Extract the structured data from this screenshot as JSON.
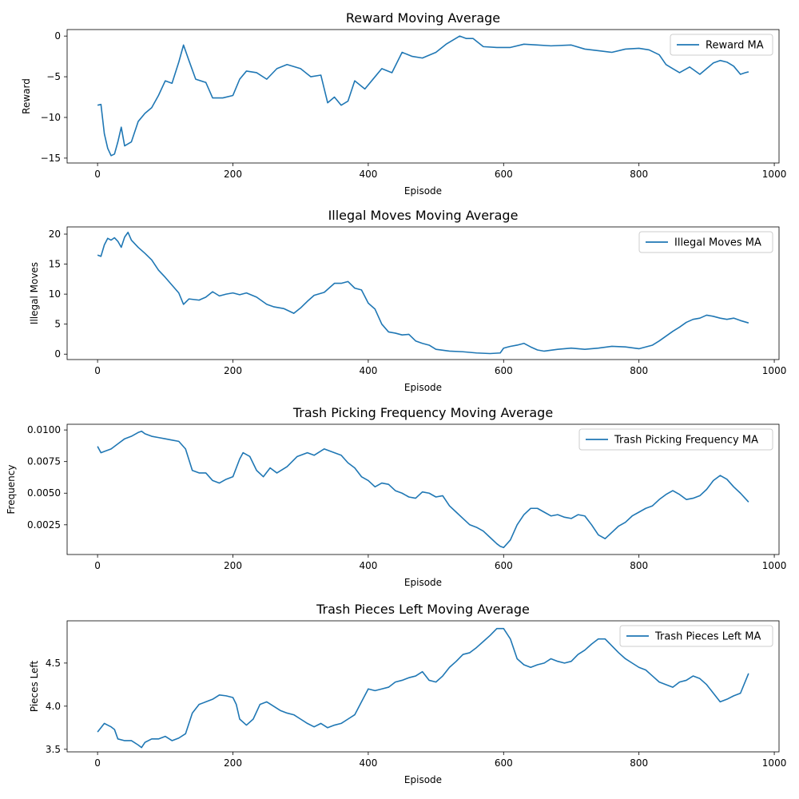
{
  "figure": {
    "line_color": "#1f77b4"
  },
  "chart_data": [
    {
      "type": "line",
      "title": "Reward Moving Average",
      "xlabel": "Episode",
      "ylabel": "Reward",
      "legend": {
        "label": "Reward MA",
        "position": "top-right"
      },
      "grid": false,
      "xlim": [
        -45,
        1007
      ],
      "ylim": [
        -15.6,
        0.8
      ],
      "xticks": [
        0,
        200,
        400,
        600,
        800,
        1000
      ],
      "xtick_labels": [
        "0",
        "200",
        "400",
        "600",
        "800",
        "1000"
      ],
      "yticks": [
        0,
        -5,
        -10,
        -15
      ],
      "ytick_labels": [
        "0",
        "−5",
        "−10",
        "−15"
      ],
      "series": [
        {
          "name": "Reward MA",
          "x": [
            0,
            5,
            10,
            15,
            20,
            25,
            30,
            35,
            40,
            50,
            60,
            70,
            80,
            90,
            100,
            110,
            120,
            127,
            135,
            145,
            160,
            170,
            185,
            200,
            210,
            220,
            235,
            250,
            265,
            280,
            300,
            315,
            330,
            340,
            350,
            360,
            370,
            380,
            395,
            410,
            420,
            435,
            450,
            465,
            480,
            500,
            515,
            535,
            545,
            555,
            570,
            590,
            610,
            630,
            650,
            670,
            700,
            720,
            740,
            760,
            780,
            800,
            815,
            830,
            840,
            850,
            860,
            875,
            890,
            900,
            910,
            920,
            930,
            940,
            950,
            957,
            962
          ],
          "y": [
            -8.5,
            -8.4,
            -12.0,
            -13.8,
            -14.7,
            -14.5,
            -13.0,
            -11.2,
            -13.5,
            -13.0,
            -10.5,
            -9.5,
            -8.8,
            -7.3,
            -5.5,
            -5.8,
            -3.2,
            -1.1,
            -3.0,
            -5.3,
            -5.7,
            -7.6,
            -7.6,
            -7.3,
            -5.3,
            -4.3,
            -4.5,
            -5.3,
            -4.0,
            -3.5,
            -4.0,
            -5.0,
            -4.8,
            -8.2,
            -7.5,
            -8.5,
            -8.0,
            -5.5,
            -6.5,
            -5.0,
            -4.0,
            -4.5,
            -2.0,
            -2.5,
            -2.7,
            -2.0,
            -1.0,
            0.0,
            -0.3,
            -0.3,
            -1.3,
            -1.4,
            -1.4,
            -1.0,
            -1.1,
            -1.2,
            -1.1,
            -1.6,
            -1.8,
            -2.0,
            -1.6,
            -1.5,
            -1.7,
            -2.3,
            -3.5,
            -4.0,
            -4.5,
            -3.8,
            -4.7,
            -4.0,
            -3.3,
            -3.0,
            -3.2,
            -3.7,
            -4.7,
            -4.5,
            -4.4
          ]
        }
      ]
    },
    {
      "type": "line",
      "title": "Illegal Moves Moving Average",
      "xlabel": "Episode",
      "ylabel": "Illegal Moves",
      "legend": {
        "label": "Illegal Moves MA",
        "position": "top-right"
      },
      "grid": false,
      "xlim": [
        -45,
        1007
      ],
      "ylim": [
        -0.9,
        21.2
      ],
      "xticks": [
        0,
        200,
        400,
        600,
        800,
        1000
      ],
      "xtick_labels": [
        "0",
        "200",
        "400",
        "600",
        "800",
        "1000"
      ],
      "yticks": [
        0,
        5,
        10,
        15,
        20
      ],
      "ytick_labels": [
        "0",
        "5",
        "10",
        "15",
        "20"
      ],
      "series": [
        {
          "name": "Illegal Moves MA",
          "x": [
            0,
            5,
            10,
            15,
            20,
            25,
            30,
            35,
            40,
            45,
            50,
            60,
            70,
            80,
            90,
            100,
            110,
            120,
            127,
            135,
            150,
            160,
            170,
            180,
            190,
            200,
            210,
            220,
            235,
            250,
            260,
            275,
            290,
            300,
            310,
            320,
            335,
            350,
            360,
            370,
            380,
            390,
            400,
            410,
            420,
            430,
            440,
            450,
            460,
            470,
            480,
            490,
            500,
            520,
            540,
            560,
            580,
            595,
            600,
            610,
            620,
            630,
            640,
            650,
            660,
            680,
            700,
            720,
            740,
            760,
            780,
            800,
            820,
            830,
            840,
            850,
            860,
            870,
            880,
            890,
            900,
            910,
            920,
            930,
            940,
            950,
            962
          ],
          "y": [
            16.5,
            16.3,
            18.2,
            19.3,
            19.0,
            19.4,
            18.8,
            17.8,
            19.5,
            20.3,
            19.0,
            17.8,
            16.8,
            15.7,
            14.0,
            12.8,
            11.5,
            10.2,
            8.3,
            9.2,
            9.0,
            9.5,
            10.4,
            9.7,
            10.0,
            10.2,
            9.9,
            10.2,
            9.5,
            8.3,
            7.9,
            7.6,
            6.8,
            7.7,
            8.8,
            9.8,
            10.3,
            11.8,
            11.8,
            12.1,
            11.0,
            10.7,
            8.5,
            7.5,
            5.0,
            3.7,
            3.5,
            3.2,
            3.3,
            2.2,
            1.8,
            1.5,
            0.8,
            0.5,
            0.4,
            0.2,
            0.1,
            0.2,
            1.0,
            1.3,
            1.5,
            1.8,
            1.2,
            0.7,
            0.5,
            0.8,
            1.0,
            0.8,
            1.0,
            1.3,
            1.2,
            0.9,
            1.5,
            2.2,
            3.0,
            3.8,
            4.5,
            5.3,
            5.8,
            6.0,
            6.5,
            6.3,
            6.0,
            5.8,
            6.0,
            5.6,
            5.2
          ]
        }
      ]
    },
    {
      "type": "line",
      "title": "Trash Picking Frequency Moving Average",
      "xlabel": "Episode",
      "ylabel": "Frequency",
      "legend": {
        "label": "Trash Picking Frequency MA",
        "position": "top-right"
      },
      "grid": false,
      "xlim": [
        -45,
        1007
      ],
      "ylim": [
        0.00015,
        0.01045
      ],
      "xticks": [
        0,
        200,
        400,
        600,
        800,
        1000
      ],
      "xtick_labels": [
        "0",
        "200",
        "400",
        "600",
        "800",
        "1000"
      ],
      "yticks": [
        0.0025,
        0.005,
        0.0075,
        0.01
      ],
      "ytick_labels": [
        "0.0025",
        "0.0050",
        "0.0075",
        "0.0100"
      ],
      "series": [
        {
          "name": "Trash Picking Frequency MA",
          "x": [
            0,
            5,
            10,
            20,
            30,
            40,
            50,
            60,
            65,
            70,
            80,
            90,
            100,
            110,
            120,
            130,
            140,
            150,
            160,
            170,
            180,
            190,
            200,
            210,
            215,
            225,
            235,
            245,
            255,
            265,
            280,
            295,
            310,
            320,
            335,
            350,
            360,
            370,
            380,
            390,
            400,
            410,
            420,
            430,
            440,
            450,
            460,
            470,
            480,
            490,
            500,
            510,
            520,
            530,
            540,
            550,
            560,
            570,
            580,
            590,
            595,
            600,
            610,
            620,
            630,
            640,
            650,
            660,
            670,
            680,
            690,
            700,
            710,
            720,
            730,
            740,
            750,
            760,
            770,
            780,
            790,
            800,
            810,
            820,
            830,
            840,
            850,
            860,
            870,
            880,
            890,
            900,
            910,
            920,
            930,
            940,
            950,
            962
          ],
          "y": [
            0.0087,
            0.0082,
            0.0083,
            0.0085,
            0.0089,
            0.0093,
            0.0095,
            0.0098,
            0.0099,
            0.0097,
            0.0095,
            0.0094,
            0.0093,
            0.0092,
            0.0091,
            0.0085,
            0.0068,
            0.0066,
            0.0066,
            0.006,
            0.0058,
            0.0061,
            0.0063,
            0.0077,
            0.0082,
            0.0079,
            0.0068,
            0.0063,
            0.007,
            0.0066,
            0.0071,
            0.0079,
            0.0082,
            0.008,
            0.0085,
            0.0082,
            0.008,
            0.0074,
            0.007,
            0.0063,
            0.006,
            0.0055,
            0.0058,
            0.0057,
            0.0052,
            0.005,
            0.0047,
            0.0046,
            0.0051,
            0.005,
            0.0047,
            0.0048,
            0.004,
            0.0035,
            0.003,
            0.0025,
            0.0023,
            0.002,
            0.0015,
            0.001,
            0.0008,
            0.0007,
            0.0013,
            0.0025,
            0.0033,
            0.0038,
            0.0038,
            0.0035,
            0.0032,
            0.0033,
            0.0031,
            0.003,
            0.0033,
            0.0032,
            0.0025,
            0.0017,
            0.0014,
            0.0019,
            0.0024,
            0.0027,
            0.0032,
            0.0035,
            0.0038,
            0.004,
            0.0045,
            0.0049,
            0.0052,
            0.0049,
            0.0045,
            0.0046,
            0.0048,
            0.0053,
            0.006,
            0.0064,
            0.0061,
            0.0055,
            0.005,
            0.0043
          ]
        }
      ]
    },
    {
      "type": "line",
      "title": "Trash Pieces Left Moving Average",
      "xlabel": "Episode",
      "ylabel": "Pieces Left",
      "legend": {
        "label": "Trash Pieces Left MA",
        "position": "top-right"
      },
      "grid": false,
      "xlim": [
        -45,
        1007
      ],
      "ylim": [
        3.47,
        4.99
      ],
      "xticks": [
        0,
        200,
        400,
        600,
        800,
        1000
      ],
      "xtick_labels": [
        "0",
        "200",
        "400",
        "600",
        "800",
        "1000"
      ],
      "yticks": [
        3.5,
        4.0,
        4.5
      ],
      "ytick_labels": [
        "3.5",
        "4.0",
        "4.5"
      ],
      "series": [
        {
          "name": "Trash Pieces Left MA",
          "x": [
            0,
            5,
            10,
            15,
            20,
            25,
            30,
            40,
            50,
            60,
            65,
            70,
            80,
            90,
            100,
            110,
            120,
            130,
            140,
            150,
            160,
            170,
            180,
            190,
            200,
            205,
            210,
            220,
            230,
            240,
            250,
            260,
            270,
            280,
            290,
            300,
            310,
            320,
            330,
            340,
            350,
            360,
            370,
            380,
            390,
            400,
            410,
            420,
            430,
            440,
            450,
            460,
            470,
            480,
            490,
            500,
            510,
            520,
            530,
            540,
            550,
            560,
            570,
            580,
            590,
            600,
            610,
            620,
            630,
            640,
            650,
            660,
            670,
            680,
            690,
            700,
            710,
            720,
            730,
            740,
            750,
            760,
            770,
            780,
            790,
            800,
            810,
            820,
            830,
            840,
            850,
            860,
            870,
            880,
            890,
            900,
            910,
            920,
            930,
            940,
            950,
            962
          ],
          "y": [
            3.7,
            3.75,
            3.8,
            3.78,
            3.76,
            3.73,
            3.62,
            3.6,
            3.6,
            3.55,
            3.52,
            3.58,
            3.62,
            3.62,
            3.65,
            3.6,
            3.63,
            3.68,
            3.92,
            4.02,
            4.05,
            4.08,
            4.13,
            4.12,
            4.1,
            4.02,
            3.85,
            3.78,
            3.85,
            4.02,
            4.05,
            4.0,
            3.95,
            3.92,
            3.9,
            3.85,
            3.8,
            3.76,
            3.8,
            3.75,
            3.78,
            3.8,
            3.85,
            3.9,
            4.05,
            4.2,
            4.18,
            4.2,
            4.22,
            4.28,
            4.3,
            4.33,
            4.35,
            4.4,
            4.3,
            4.28,
            4.35,
            4.45,
            4.52,
            4.6,
            4.62,
            4.68,
            4.75,
            4.82,
            4.9,
            4.9,
            4.78,
            4.55,
            4.48,
            4.45,
            4.48,
            4.5,
            4.55,
            4.52,
            4.5,
            4.52,
            4.6,
            4.65,
            4.72,
            4.78,
            4.78,
            4.7,
            4.62,
            4.55,
            4.5,
            4.45,
            4.42,
            4.35,
            4.28,
            4.25,
            4.22,
            4.28,
            4.3,
            4.35,
            4.32,
            4.25,
            4.15,
            4.05,
            4.08,
            4.12,
            4.15,
            4.38
          ]
        }
      ]
    }
  ]
}
